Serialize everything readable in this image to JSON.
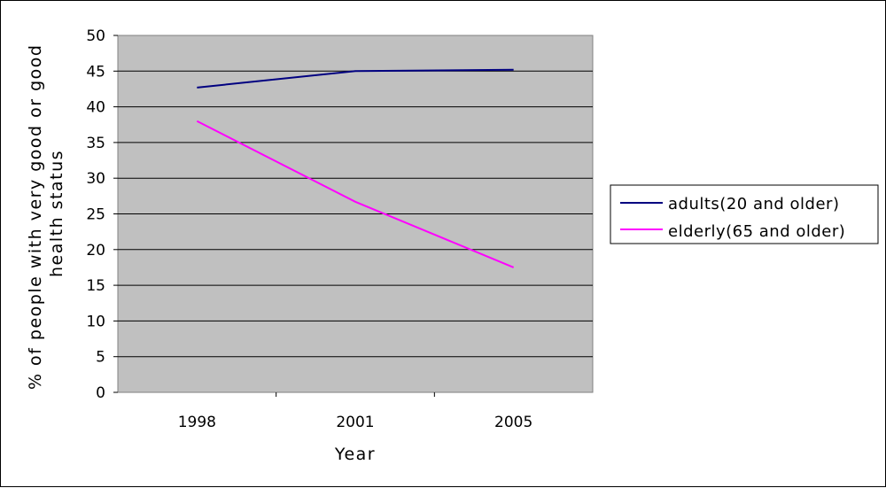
{
  "chart_data": {
    "type": "line",
    "title": "",
    "categories": [
      "1998",
      "2001",
      "2005"
    ],
    "xlabel": "Year",
    "ylabel": "% of people with very good or good health status",
    "ylim": [
      0,
      50
    ],
    "y_ticks": [
      0,
      5,
      10,
      15,
      20,
      25,
      30,
      35,
      40,
      45,
      50
    ],
    "grid": true,
    "legend_position": "right",
    "series": [
      {
        "name": "adults(20 and older)",
        "color": "#000080",
        "values": [
          42.7,
          45.0,
          45.2
        ]
      },
      {
        "name": "elderly(65 and older)",
        "color": "#ff00ff",
        "values": [
          38.0,
          26.7,
          17.5
        ]
      }
    ],
    "colors": {
      "plot_background": "#c0c0c0",
      "gridline": "#000000"
    }
  }
}
